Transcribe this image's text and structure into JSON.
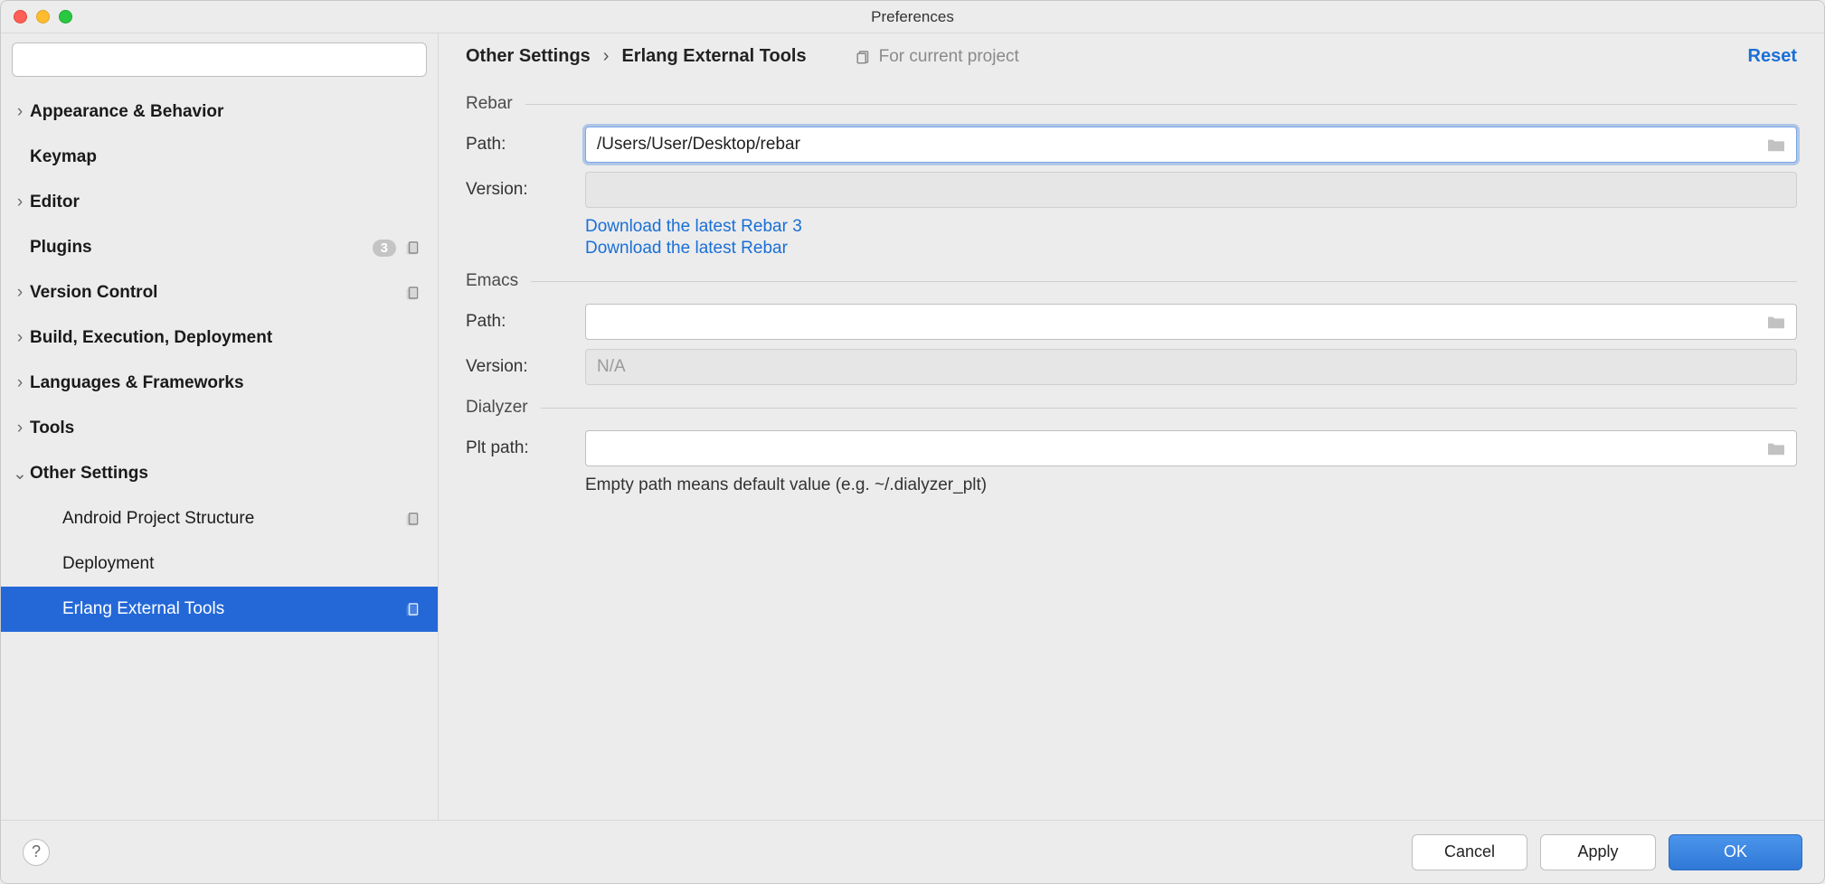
{
  "window": {
    "title": "Preferences"
  },
  "sidebar": {
    "search_placeholder": "",
    "items": [
      {
        "label": "Appearance & Behavior",
        "bold": true,
        "expandable": true
      },
      {
        "label": "Keymap",
        "bold": true,
        "expandable": false
      },
      {
        "label": "Editor",
        "bold": true,
        "expandable": true
      },
      {
        "label": "Plugins",
        "bold": true,
        "expandable": false,
        "badge": "3",
        "scope_icon": true
      },
      {
        "label": "Version Control",
        "bold": true,
        "expandable": true,
        "scope_icon": true
      },
      {
        "label": "Build, Execution, Deployment",
        "bold": true,
        "expandable": true
      },
      {
        "label": "Languages & Frameworks",
        "bold": true,
        "expandable": true
      },
      {
        "label": "Tools",
        "bold": true,
        "expandable": true
      },
      {
        "label": "Other Settings",
        "bold": true,
        "expandable": true,
        "expanded": true
      },
      {
        "label": "Android Project Structure",
        "child": true,
        "scope_icon": true
      },
      {
        "label": "Deployment",
        "child": true
      },
      {
        "label": "Erlang External Tools",
        "child": true,
        "selected": true,
        "scope_icon": true
      }
    ]
  },
  "header": {
    "breadcrumb_parent": "Other Settings",
    "breadcrumb_current": "Erlang External Tools",
    "scope_note": "For current project",
    "reset": "Reset"
  },
  "sections": {
    "rebar": {
      "title": "Rebar",
      "path_label": "Path:",
      "path_value": "/Users/User/Desktop/rebar",
      "version_label": "Version:",
      "version_value": "",
      "link_rebar3": "Download the latest Rebar 3",
      "link_rebar": "Download the latest Rebar"
    },
    "emacs": {
      "title": "Emacs",
      "path_label": "Path:",
      "path_value": "",
      "version_label": "Version:",
      "version_placeholder": "N/A"
    },
    "dialyzer": {
      "title": "Dialyzer",
      "plt_label": "Plt path:",
      "plt_value": "",
      "hint": "Empty path means default value (e.g. ~/.dialyzer_plt)"
    }
  },
  "footer": {
    "cancel": "Cancel",
    "apply": "Apply",
    "ok": "OK"
  },
  "colors": {
    "accent": "#2468d8",
    "link": "#1a6fd6",
    "bg": "#ececec",
    "border": "#bfbfbf"
  }
}
